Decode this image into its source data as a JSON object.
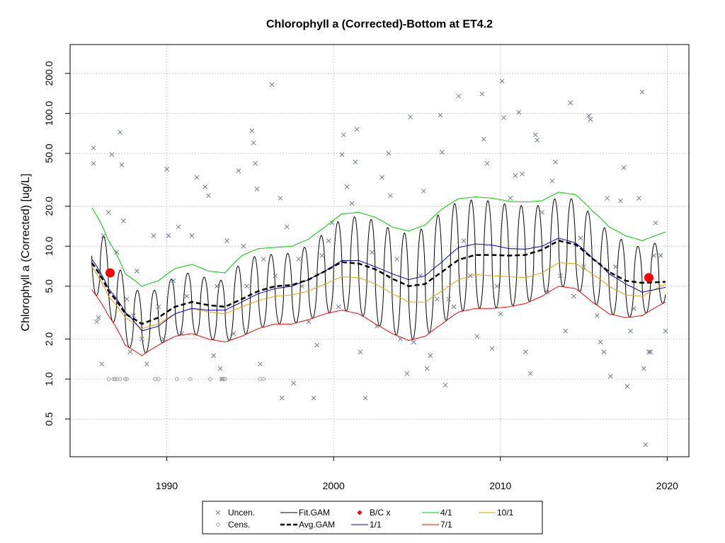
{
  "chart_data": {
    "type": "line",
    "title": "Chlorophyll a (Corrected)-Bottom at ET4.2",
    "xlabel": "",
    "ylabel": "Chlorophyll a (Corrected) [ug/L]",
    "y_scale": "log",
    "xlim": [
      1984.2,
      2021.3
    ],
    "ylim": [
      0.26,
      330
    ],
    "x_ticks": [
      1990,
      2000,
      2010,
      2020
    ],
    "x_tick_labels": [
      "1990",
      "2000",
      "2010",
      "2020"
    ],
    "y_ticks": [
      0.5,
      1.0,
      2.0,
      5.0,
      10.0,
      20.0,
      50.0,
      100.0,
      200.0
    ],
    "y_tick_labels": [
      "0.5",
      "1.0",
      "2.0",
      "5.0",
      "10.0",
      "20.0",
      "50.0",
      "100.0",
      "200.0"
    ],
    "grid": true,
    "legend_position": "bottom",
    "legend": [
      {
        "label": "Uncen.",
        "marker": "x",
        "color": "#6e7b8b"
      },
      {
        "label": "Fit.GAM",
        "line": "solid",
        "color": "#000000"
      },
      {
        "label": "B/C x",
        "marker": "diamond",
        "color": "#ff0000"
      },
      {
        "label": "4/1",
        "line": "solid",
        "color": "#00cc00"
      },
      {
        "label": "10/1",
        "line": "solid",
        "color": "#e69f00"
      },
      {
        "label": "Cens.",
        "marker": "circle-open",
        "color": "#a0a0a0"
      },
      {
        "label": "Avg.GAM",
        "line": "dashed",
        "color": "#000000"
      },
      {
        "label": "1/1",
        "line": "solid",
        "color": "#0000cc"
      },
      {
        "label": "7/1",
        "line": "solid",
        "color": "#ff0000"
      }
    ],
    "seasonal_curves": [
      {
        "name": "4/1",
        "color": "#00cc00",
        "x": [
          1985.5,
          1986.5,
          1987.5,
          1988.5,
          1989.5,
          1990.5,
          1991.5,
          1992.5,
          1993.5,
          1994.5,
          1995.5,
          1996.5,
          1997.5,
          1998.5,
          1999.5,
          2000.5,
          2001.5,
          2002.5,
          2003.5,
          2004.5,
          2005.5,
          2006.5,
          2007.5,
          2008.5,
          2009.5,
          2010.5,
          2011.5,
          2012.5,
          2013.5,
          2014.5,
          2015.5,
          2016.5,
          2017.5,
          2018.5,
          2019.9
        ],
        "y": [
          19.5,
          11.0,
          6.2,
          5.0,
          5.5,
          6.8,
          7.3,
          6.5,
          6.3,
          8.5,
          9.6,
          9.8,
          10.0,
          11.3,
          14.0,
          17.5,
          18.0,
          16.5,
          14.0,
          13.0,
          14.5,
          19.0,
          22.8,
          23.5,
          23.0,
          21.8,
          21.5,
          22.0,
          25.5,
          24.5,
          18.5,
          14.0,
          12.0,
          11.0,
          12.8
        ]
      },
      {
        "name": "10/1",
        "color": "#e69f00",
        "x": [
          1985.5,
          1986.5,
          1987.5,
          1988.5,
          1989.5,
          1990.5,
          1991.5,
          1992.5,
          1993.5,
          1994.5,
          1995.5,
          1996.5,
          1997.5,
          1998.5,
          1999.5,
          2000.5,
          2001.5,
          2002.5,
          2003.5,
          2004.5,
          2005.5,
          2006.5,
          2007.5,
          2008.5,
          2009.5,
          2010.5,
          2011.5,
          2012.5,
          2013.5,
          2014.5,
          2015.5,
          2016.5,
          2017.5,
          2018.5,
          2019.9
        ],
        "y": [
          7.0,
          4.2,
          2.9,
          2.4,
          2.6,
          3.1,
          3.4,
          3.2,
          3.1,
          3.5,
          3.9,
          4.2,
          4.3,
          4.6,
          5.2,
          5.9,
          5.8,
          5.2,
          4.4,
          3.8,
          3.8,
          4.6,
          5.6,
          6.1,
          6.0,
          5.9,
          5.8,
          6.3,
          7.5,
          7.4,
          6.2,
          5.0,
          4.3,
          4.2,
          5.2
        ]
      },
      {
        "name": "1/1",
        "color": "#0000cc",
        "x": [
          1985.5,
          1986.5,
          1987.5,
          1988.5,
          1989.5,
          1990.5,
          1991.5,
          1992.5,
          1993.5,
          1994.5,
          1995.5,
          1996.5,
          1997.5,
          1998.5,
          1999.5,
          2000.5,
          2001.5,
          2002.5,
          2003.5,
          2004.5,
          2005.5,
          2006.5,
          2007.5,
          2008.5,
          2009.5,
          2010.5,
          2011.5,
          2012.5,
          2013.5,
          2014.5,
          2015.5,
          2016.5,
          2017.5,
          2018.5,
          2019.9
        ],
        "y": [
          8.0,
          4.8,
          3.2,
          2.3,
          2.5,
          3.1,
          3.4,
          3.3,
          3.3,
          3.8,
          4.4,
          4.8,
          5.0,
          5.6,
          6.5,
          7.8,
          7.8,
          7.0,
          6.2,
          5.6,
          6.0,
          7.6,
          9.8,
          10.4,
          10.2,
          9.6,
          9.5,
          10.0,
          11.5,
          10.6,
          8.2,
          6.2,
          5.2,
          4.5,
          4.9
        ]
      },
      {
        "name": "7/1",
        "color": "#ff0000",
        "x": [
          1985.5,
          1986.5,
          1987.5,
          1988.5,
          1989.5,
          1990.5,
          1991.5,
          1992.5,
          1993.5,
          1994.5,
          1995.5,
          1996.5,
          1997.5,
          1998.5,
          1999.5,
          2000.5,
          2001.5,
          2002.5,
          2003.5,
          2004.5,
          2005.5,
          2006.5,
          2007.5,
          2008.5,
          2009.5,
          2010.5,
          2011.5,
          2012.5,
          2013.5,
          2014.5,
          2015.5,
          2016.5,
          2017.5,
          2018.5,
          2019.9
        ],
        "y": [
          4.7,
          3.0,
          1.8,
          1.5,
          1.8,
          2.1,
          2.2,
          2.0,
          1.9,
          2.1,
          2.4,
          2.6,
          2.6,
          2.8,
          3.1,
          3.3,
          3.1,
          2.6,
          2.2,
          1.95,
          2.1,
          2.6,
          3.2,
          3.4,
          3.4,
          3.5,
          3.7,
          4.2,
          5.0,
          4.8,
          3.8,
          3.1,
          2.9,
          3.0,
          3.8
        ]
      }
    ],
    "average_gam": {
      "name": "Avg.GAM",
      "style": "dashed",
      "color": "#000000",
      "x": [
        1985.5,
        1986.5,
        1987.5,
        1988.5,
        1989.5,
        1990.5,
        1991.5,
        1992.5,
        1993.5,
        1994.5,
        1995.5,
        1996.5,
        1997.5,
        1998.5,
        1999.5,
        2000.5,
        2001.5,
        2002.5,
        2003.5,
        2004.5,
        2005.5,
        2006.5,
        2007.5,
        2008.5,
        2009.5,
        2010.5,
        2011.5,
        2012.5,
        2013.5,
        2014.5,
        2015.5,
        2016.5,
        2017.5,
        2018.5,
        2019.9
      ],
      "y": [
        7.5,
        4.6,
        3.1,
        2.6,
        2.9,
        3.5,
        3.8,
        3.6,
        3.5,
        4.0,
        4.6,
        5.0,
        5.1,
        5.6,
        6.5,
        7.6,
        7.4,
        6.7,
        5.7,
        5.0,
        5.2,
        6.4,
        7.9,
        8.6,
        8.6,
        8.5,
        8.6,
        9.4,
        11.0,
        10.3,
        8.1,
        6.4,
        5.5,
        5.3,
        5.4
      ]
    },
    "fit_gam": {
      "name": "Fit.GAM",
      "color": "#000000",
      "peak_month_fraction": 0.25,
      "peak_factor": "4/1",
      "trough_factor": "7/1",
      "start": 1985.5,
      "end": 2019.9
    },
    "bias_corrected": {
      "name": "B/C x",
      "color": "#ff0000",
      "points": [
        {
          "x": 1986.6,
          "y": 6.3
        },
        {
          "x": 2018.9,
          "y": 5.8
        }
      ]
    },
    "uncensored": {
      "name": "Uncen.",
      "color": "#6e7b8b",
      "points": [
        [
          1985.6,
          55
        ],
        [
          1985.6,
          42
        ],
        [
          1985.8,
          2.7
        ],
        [
          1985.9,
          2.9
        ],
        [
          1986.1,
          1.3
        ],
        [
          1986.2,
          12
        ],
        [
          1986.5,
          18
        ],
        [
          1986.7,
          49
        ],
        [
          1987.0,
          9
        ],
        [
          1987.2,
          72
        ],
        [
          1987.3,
          41
        ],
        [
          1987.4,
          15.5
        ],
        [
          1987.6,
          4
        ],
        [
          1987.8,
          1.6
        ],
        [
          1988.0,
          3
        ],
        [
          1988.2,
          6.5
        ],
        [
          1988.5,
          2
        ],
        [
          1988.8,
          1.3
        ],
        [
          1989.2,
          12
        ],
        [
          1989.5,
          3.5
        ],
        [
          1989.8,
          2
        ],
        [
          1990.0,
          38
        ],
        [
          1990.1,
          12
        ],
        [
          1990.4,
          5.5
        ],
        [
          1990.7,
          14
        ],
        [
          1990.9,
          2.2
        ],
        [
          1991.2,
          4.2
        ],
        [
          1991.5,
          12
        ],
        [
          1991.8,
          33
        ],
        [
          1992.3,
          28
        ],
        [
          1992.5,
          24
        ],
        [
          1992.8,
          1.5
        ],
        [
          1993.0,
          5
        ],
        [
          1993.2,
          1.2
        ],
        [
          1993.3,
          1.0
        ],
        [
          1993.6,
          11
        ],
        [
          1994.0,
          2.2
        ],
        [
          1994.3,
          37
        ],
        [
          1994.6,
          10
        ],
        [
          1994.8,
          5
        ],
        [
          1995.1,
          74
        ],
        [
          1995.2,
          60
        ],
        [
          1995.3,
          42
        ],
        [
          1995.4,
          27
        ],
        [
          1995.6,
          1.3
        ],
        [
          1995.8,
          8
        ],
        [
          1996.3,
          165
        ],
        [
          1996.5,
          6
        ],
        [
          1996.8,
          23
        ],
        [
          1996.9,
          0.72
        ],
        [
          1997.2,
          14
        ],
        [
          1997.6,
          0.93
        ],
        [
          1997.9,
          8
        ],
        [
          1998.1,
          5
        ],
        [
          1998.5,
          2.7
        ],
        [
          1998.8,
          0.72
        ],
        [
          1999.0,
          1.8
        ],
        [
          1999.3,
          8.5
        ],
        [
          1999.7,
          11
        ],
        [
          1999.9,
          15
        ],
        [
          2000.3,
          3.5
        ],
        [
          2000.5,
          49
        ],
        [
          2000.6,
          69
        ],
        [
          2000.8,
          28
        ],
        [
          2001.1,
          21
        ],
        [
          2001.3,
          43
        ],
        [
          2001.4,
          76
        ],
        [
          2001.6,
          1.6
        ],
        [
          2001.9,
          0.72
        ],
        [
          2002.3,
          9
        ],
        [
          2002.6,
          2.5
        ],
        [
          2002.9,
          33
        ],
        [
          2003.3,
          50
        ],
        [
          2003.4,
          24
        ],
        [
          2003.8,
          8
        ],
        [
          2004.0,
          2
        ],
        [
          2004.4,
          1.1
        ],
        [
          2004.6,
          94
        ],
        [
          2004.8,
          1.9
        ],
        [
          2005.2,
          6
        ],
        [
          2005.4,
          26
        ],
        [
          2005.6,
          1.2
        ],
        [
          2005.8,
          1.5
        ],
        [
          2006.2,
          4
        ],
        [
          2006.4,
          97
        ],
        [
          2006.5,
          51
        ],
        [
          2006.7,
          0.9
        ],
        [
          2006.9,
          4
        ],
        [
          2007.2,
          3.5
        ],
        [
          2007.5,
          135
        ],
        [
          2007.8,
          11
        ],
        [
          2008.2,
          6
        ],
        [
          2008.6,
          2.1
        ],
        [
          2008.9,
          140
        ],
        [
          2009.0,
          64
        ],
        [
          2009.2,
          42
        ],
        [
          2009.5,
          1.7
        ],
        [
          2009.8,
          5
        ],
        [
          2010.0,
          3.1
        ],
        [
          2010.1,
          175
        ],
        [
          2010.2,
          93
        ],
        [
          2010.6,
          23
        ],
        [
          2010.9,
          34
        ],
        [
          2011.1,
          102
        ],
        [
          2011.3,
          35
        ],
        [
          2011.5,
          1.6
        ],
        [
          2011.8,
          1.1
        ],
        [
          2012.1,
          69
        ],
        [
          2012.2,
          63
        ],
        [
          2012.5,
          18
        ],
        [
          2012.8,
          4.5
        ],
        [
          2013.1,
          31
        ],
        [
          2013.3,
          43
        ],
        [
          2013.6,
          6
        ],
        [
          2013.9,
          2.3
        ],
        [
          2014.2,
          120
        ],
        [
          2014.4,
          4.2
        ],
        [
          2014.8,
          11.5
        ],
        [
          2015.0,
          7
        ],
        [
          2015.3,
          96
        ],
        [
          2015.4,
          90
        ],
        [
          2015.8,
          3
        ],
        [
          2016.0,
          1.9
        ],
        [
          2016.2,
          1.6
        ],
        [
          2016.4,
          23
        ],
        [
          2016.6,
          1.05
        ],
        [
          2016.9,
          7
        ],
        [
          2017.2,
          22
        ],
        [
          2017.4,
          39
        ],
        [
          2017.6,
          0.88
        ],
        [
          2017.8,
          2.3
        ],
        [
          2018.0,
          3.4
        ],
        [
          2018.3,
          23
        ],
        [
          2018.5,
          145
        ],
        [
          2018.6,
          1.2
        ],
        [
          2018.9,
          1.6
        ],
        [
          2019.0,
          1.6
        ],
        [
          2019.2,
          8.5
        ],
        [
          2019.3,
          15
        ],
        [
          2019.6,
          8.5
        ],
        [
          2019.9,
          2.3
        ],
        [
          2018.7,
          0.32
        ]
      ]
    },
    "censored": {
      "name": "Cens.",
      "color": "#a0a0a0",
      "points": [
        [
          1986.5,
          1.0
        ],
        [
          1986.8,
          1.0
        ],
        [
          1987.0,
          1.0
        ],
        [
          1987.2,
          1.0
        ],
        [
          1987.5,
          1.0
        ],
        [
          1987.6,
          1.0
        ],
        [
          1989.3,
          1.0
        ],
        [
          1989.5,
          1.0
        ],
        [
          1990.6,
          1.0
        ],
        [
          1991.4,
          1.0
        ],
        [
          1992.6,
          1.0
        ],
        [
          1993.3,
          1.0
        ],
        [
          1993.4,
          1.0
        ],
        [
          1993.5,
          1.0
        ],
        [
          1995.6,
          1.0
        ],
        [
          1995.8,
          1.0
        ],
        [
          1986.9,
          1.0
        ]
      ]
    }
  }
}
